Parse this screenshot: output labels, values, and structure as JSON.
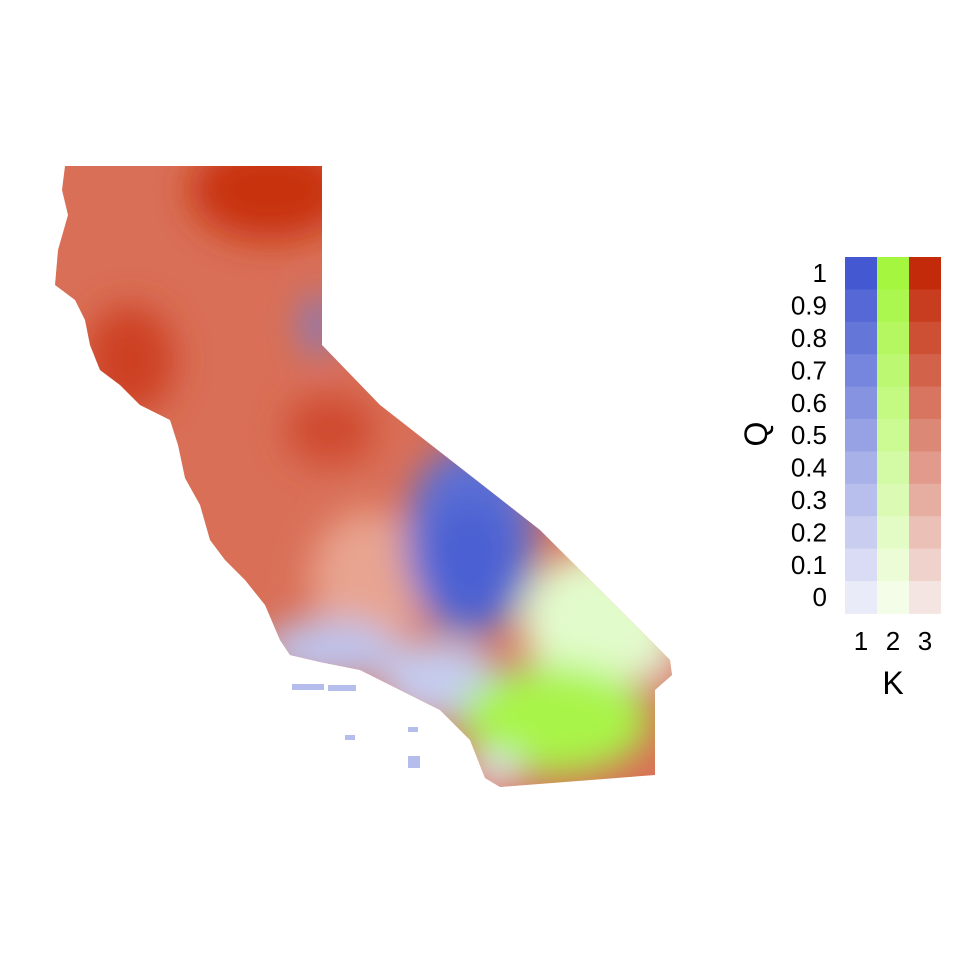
{
  "legend": {
    "y_axis_title": "Q",
    "x_axis_title": "K",
    "columns": [
      {
        "label": "1",
        "color_full": "#4459d1",
        "color_zero": "#eaebf8"
      },
      {
        "label": "2",
        "color_full": "#a4f63e",
        "color_zero": "#f3fde8"
      },
      {
        "label": "3",
        "color_full": "#c32a09",
        "color_zero": "#f5e5e2"
      }
    ],
    "q_ticks": [
      "1",
      "0.9",
      "0.8",
      "0.7",
      "0.6",
      "0.5",
      "0.4",
      "0.3",
      "0.2",
      "0.1",
      "0"
    ],
    "q_steps": 11
  },
  "map": {
    "region_colors": {
      "cluster_3": "#d65a43",
      "cluster_3_strong": "#c8330f",
      "cluster_1": "#5b6fd6",
      "cluster_1_light": "#bcc4ee",
      "cluster_2": "#a9f44a",
      "cluster_2_light": "#e2fbcb"
    }
  }
}
